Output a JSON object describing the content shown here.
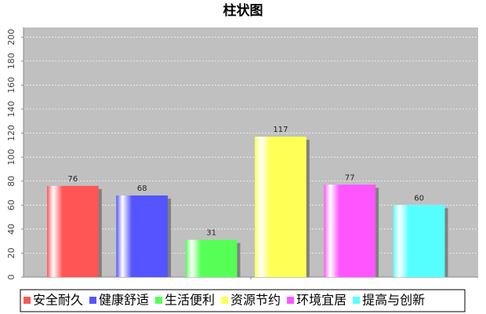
{
  "chart_data": {
    "type": "bar",
    "title": "柱状图",
    "categories": [
      null
    ],
    "series": [
      {
        "name": "安全耐久",
        "color": "#ff5555",
        "values": [
          76
        ]
      },
      {
        "name": "健康舒适",
        "color": "#5555ff",
        "values": [
          68
        ]
      },
      {
        "name": "生活便利",
        "color": "#55ff55",
        "values": [
          31
        ]
      },
      {
        "name": "资源节约",
        "color": "#ffff55",
        "values": [
          117
        ]
      },
      {
        "name": "环境宜居",
        "color": "#ff55ff",
        "values": [
          77
        ]
      },
      {
        "name": "提高与创新",
        "color": "#55ffff",
        "values": [
          60
        ]
      }
    ],
    "ylim": [
      0,
      208
    ],
    "yticks": [
      0,
      20,
      40,
      60,
      80,
      100,
      120,
      140,
      160,
      180,
      200
    ],
    "grid": true,
    "legend": "bottom"
  }
}
